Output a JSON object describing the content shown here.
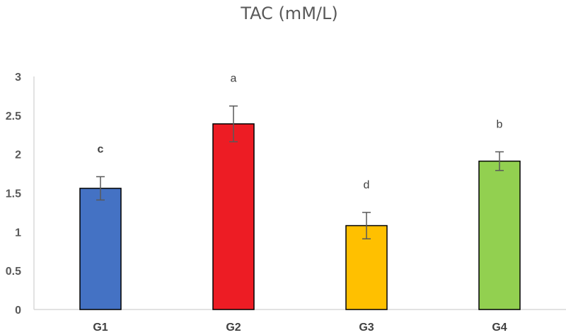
{
  "chart_data": {
    "type": "bar",
    "title": "TAC (mM/L)",
    "xlabel": "",
    "ylabel": "",
    "ylim": [
      0,
      3
    ],
    "yticks": [
      "0",
      "0.5",
      "1",
      "1.5",
      "2",
      "2.5",
      "3"
    ],
    "categories": [
      "G1",
      "G2",
      "G3",
      "G4"
    ],
    "values": [
      1.56,
      2.39,
      1.08,
      1.91
    ],
    "errors": [
      0.15,
      0.23,
      0.17,
      0.12
    ],
    "significance_labels": [
      "c",
      "a",
      "d",
      "b"
    ],
    "significance_bold": [
      true,
      false,
      false,
      false
    ],
    "colors": [
      "#4472C4",
      "#ED1C24",
      "#FFC000",
      "#92D050"
    ],
    "grid": false,
    "legend": "none"
  }
}
